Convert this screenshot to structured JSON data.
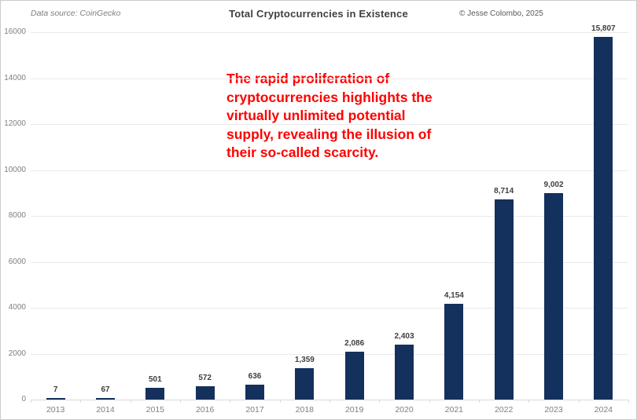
{
  "header": {
    "data_source": "Data source: CoinGecko",
    "title": "Total Cryptocurrencies in Existence",
    "copyright": "© Jesse Colombo, 2025"
  },
  "annotation": {
    "text": "The rapid proliferation of\ncryptocurrencies highlights the\nvirtually unlimited potential\nsupply, revealing the illusion of\ntheir so-called scarcity."
  },
  "colors": {
    "bar": "#14305c",
    "annotation_text": "#ff0000",
    "gridline": "#e9e9e9",
    "axis_line": "#d9d9d9",
    "title_text": "#3f3f3f",
    "value_label_text": "#3f3f3f",
    "axis_text": "#7f7f7f"
  },
  "chart_data": {
    "type": "bar",
    "title": "Total Cryptocurrencies in Existence",
    "categories": [
      "2013",
      "2014",
      "2015",
      "2016",
      "2017",
      "2018",
      "2019",
      "2020",
      "2021",
      "2022",
      "2023",
      "2024"
    ],
    "values": [
      7,
      67,
      501,
      572,
      636,
      1359,
      2086,
      2403,
      4154,
      8714,
      9002,
      15807
    ],
    "value_labels": [
      "7",
      "67",
      "501",
      "572",
      "636",
      "1,359",
      "2,086",
      "2,403",
      "4,154",
      "8,714",
      "9,002",
      "15,807"
    ],
    "xlabel": "",
    "ylabel": "",
    "ylim": [
      0,
      16000
    ],
    "yticks": [
      0,
      2000,
      4000,
      6000,
      8000,
      10000,
      12000,
      14000,
      16000
    ],
    "ytick_labels": [
      "0",
      "2000",
      "4000",
      "6000",
      "8000",
      "10000",
      "12000",
      "14000",
      "16000"
    ],
    "grid": "horizontal",
    "legend": "none"
  }
}
